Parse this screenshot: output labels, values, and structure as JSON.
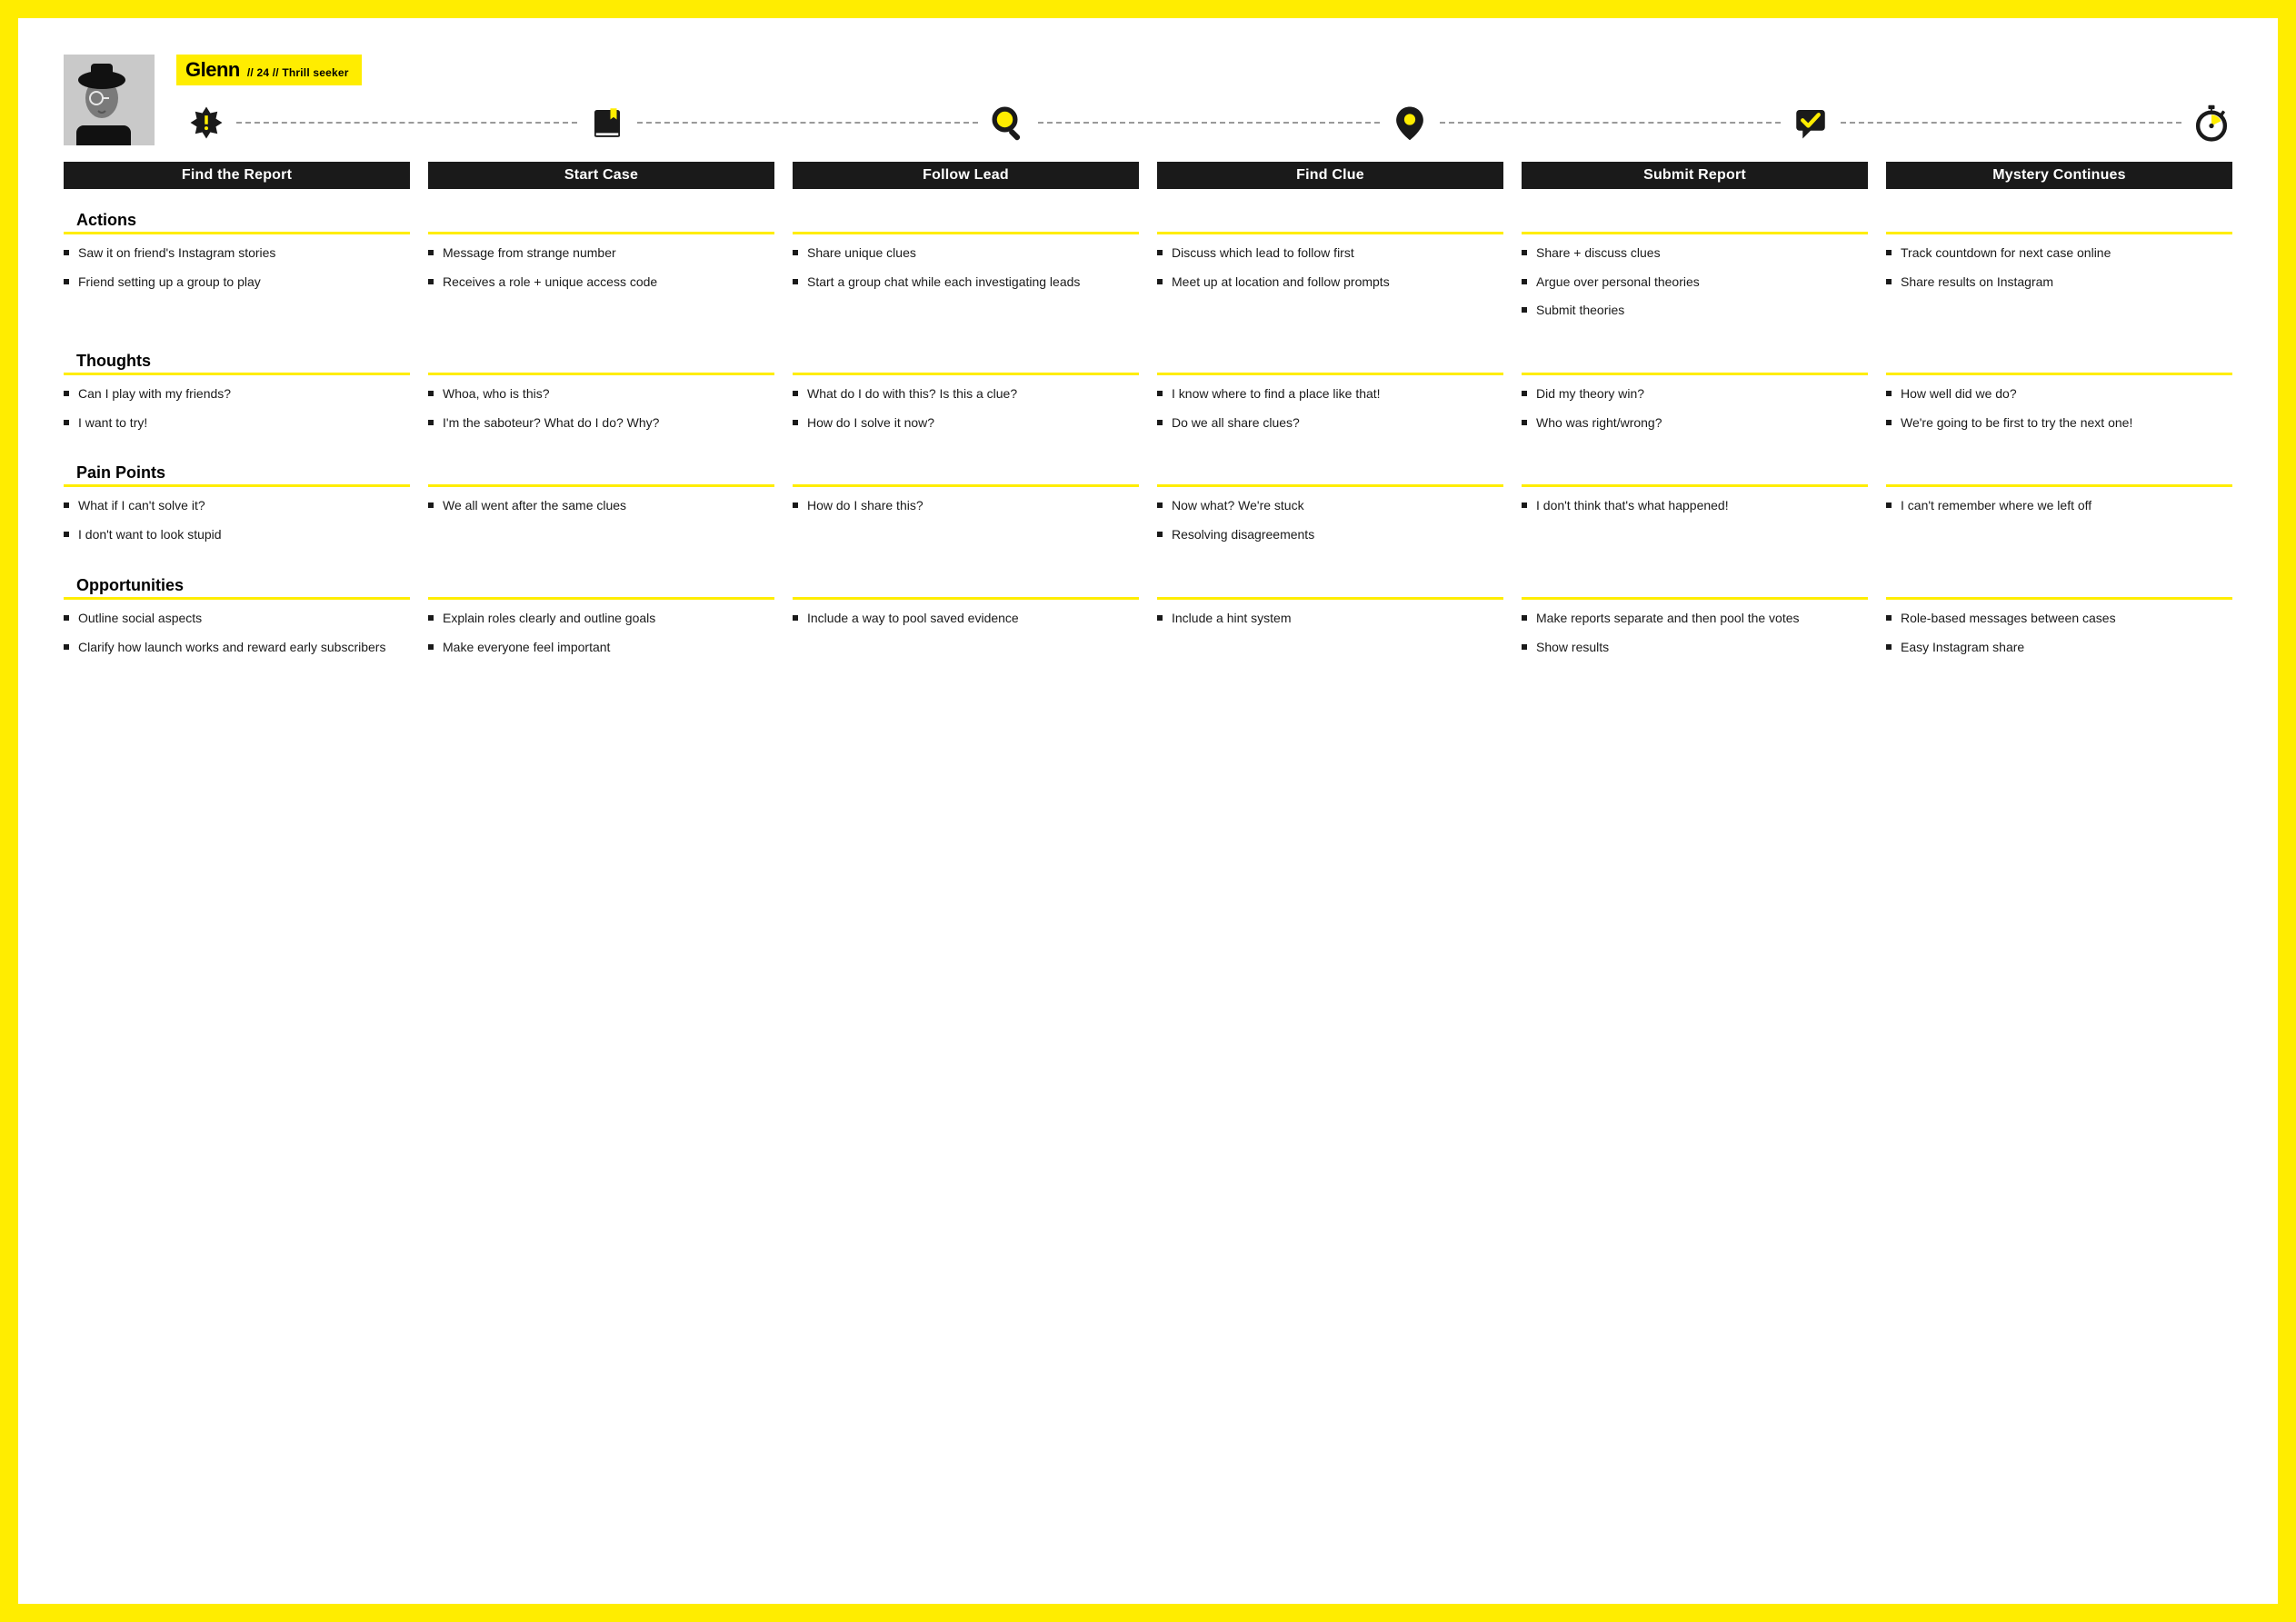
{
  "colors": {
    "brand_yellow": "#ffed00",
    "black": "#1a1a1a",
    "white": "#ffffff",
    "dash_gray": "#9a9a9a",
    "avatar_bg": "#bcbcbc"
  },
  "persona": {
    "name": "Glenn",
    "meta": "// 24 // Thrill seeker"
  },
  "stages": [
    "Find the Report",
    "Start Case",
    "Follow Lead",
    "Find Clue",
    "Submit Report",
    "Mystery Continues"
  ],
  "icons": [
    "burst",
    "book",
    "magnifier",
    "pin",
    "chat-check",
    "stopwatch"
  ],
  "rows": [
    {
      "label": "Actions",
      "cells": [
        [
          "Saw it on friend's Instagram stories",
          "Friend setting up a group to play"
        ],
        [
          "Message from strange number",
          "Receives a role + unique access code"
        ],
        [
          "Share unique clues",
          "Start a group chat while each investigating leads"
        ],
        [
          "Discuss which lead to follow first",
          "Meet up at location and follow prompts"
        ],
        [
          "Share + discuss clues",
          "Argue over personal theories",
          "Submit theories"
        ],
        [
          "Track countdown for next case online",
          "Share results on Instagram"
        ]
      ]
    },
    {
      "label": "Thoughts",
      "cells": [
        [
          "Can I play with my friends?",
          "I want to try!"
        ],
        [
          "Whoa, who is this?",
          "I'm the saboteur? What do I do? Why?"
        ],
        [
          "What do I do with this? Is this a clue?",
          "How do I solve it now?"
        ],
        [
          "I know where to find a place like that!",
          "Do we all share clues?"
        ],
        [
          "Did my theory win?",
          "Who was right/wrong?"
        ],
        [
          "How well did we do?",
          "We're going to be first to try the next one!"
        ]
      ]
    },
    {
      "label": "Pain Points",
      "cells": [
        [
          "What if I can't solve it?",
          "I don't want to look stupid"
        ],
        [
          "We all went after the same clues"
        ],
        [
          "How do I share this?"
        ],
        [
          "Now what? We're stuck",
          "Resolving disagreements"
        ],
        [
          "I don't think that's what happened!"
        ],
        [
          "I can't remember where we left off"
        ]
      ]
    },
    {
      "label": "Opportunities",
      "cells": [
        [
          "Outline social aspects",
          "Clarify how launch works and reward early subscribers"
        ],
        [
          "Explain roles clearly and outline goals",
          "Make everyone feel important"
        ],
        [
          "Include a way to pool saved evidence"
        ],
        [
          "Include a hint system"
        ],
        [
          "Make reports separate and then pool the votes",
          "Show results"
        ],
        [
          "Role-based messages between cases",
          "Easy Instagram share"
        ]
      ]
    }
  ]
}
